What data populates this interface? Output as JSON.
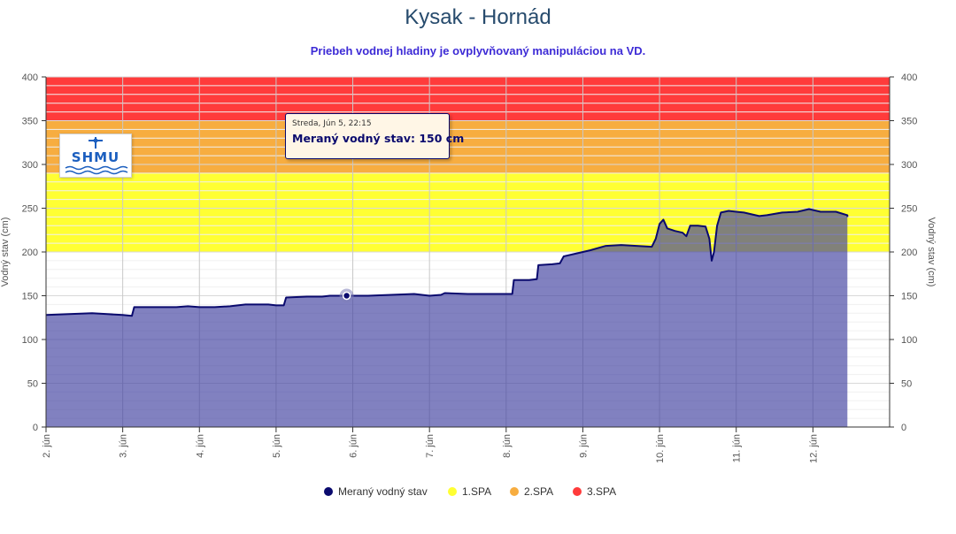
{
  "chart_data": {
    "type": "area",
    "title": "Kysak - Hornád",
    "subtitle": "Priebeh vodnej hladiny je ovplyvňovaný manipuláciou na VD.",
    "ylabel_left": "Vodný stav (cm)",
    "ylabel_right": "Vodný stav (cm)",
    "ylim": [
      0,
      400
    ],
    "y_ticks": [
      "0",
      "50",
      "100",
      "150",
      "200",
      "250",
      "300",
      "350",
      "400"
    ],
    "xlim": [
      2.0,
      13.0
    ],
    "x_ticks": [
      {
        "value": 2,
        "label": "2. jún"
      },
      {
        "value": 3,
        "label": "3. jún"
      },
      {
        "value": 4,
        "label": "4. jún"
      },
      {
        "value": 5,
        "label": "5. jún"
      },
      {
        "value": 6,
        "label": "6. jún"
      },
      {
        "value": 7,
        "label": "7. jún"
      },
      {
        "value": 8,
        "label": "8. jún"
      },
      {
        "value": 9,
        "label": "9. jún"
      },
      {
        "value": 10,
        "label": "10. jún"
      },
      {
        "value": 11,
        "label": "11. jún"
      },
      {
        "value": 12,
        "label": "12. jún"
      }
    ],
    "bands": [
      {
        "name": "1.SPA",
        "from": 200,
        "to": 290,
        "color": "#ffff33"
      },
      {
        "name": "2.SPA",
        "from": 290,
        "to": 350,
        "color": "#f7ad40"
      },
      {
        "name": "3.SPA",
        "from": 350,
        "to": 400,
        "color": "#ff3b3b"
      }
    ],
    "series": [
      {
        "name": "Meraný vodný stav",
        "color": "#0a0a6e",
        "fill": "#4040a0",
        "points": [
          [
            2.0,
            128
          ],
          [
            2.3,
            129
          ],
          [
            2.6,
            130
          ],
          [
            2.8,
            129
          ],
          [
            3.0,
            128
          ],
          [
            3.12,
            127
          ],
          [
            3.15,
            137
          ],
          [
            3.4,
            137
          ],
          [
            3.7,
            137
          ],
          [
            3.85,
            138
          ],
          [
            4.0,
            137
          ],
          [
            4.2,
            137
          ],
          [
            4.4,
            138
          ],
          [
            4.6,
            140
          ],
          [
            4.9,
            140
          ],
          [
            5.0,
            139
          ],
          [
            5.1,
            139
          ],
          [
            5.13,
            148
          ],
          [
            5.4,
            149
          ],
          [
            5.6,
            149
          ],
          [
            5.7,
            150
          ],
          [
            5.92,
            150
          ],
          [
            6.2,
            150
          ],
          [
            6.5,
            151
          ],
          [
            6.8,
            152
          ],
          [
            7.0,
            150
          ],
          [
            7.15,
            151
          ],
          [
            7.2,
            153
          ],
          [
            7.5,
            152
          ],
          [
            7.8,
            152
          ],
          [
            8.0,
            152
          ],
          [
            8.08,
            152
          ],
          [
            8.1,
            168
          ],
          [
            8.3,
            168
          ],
          [
            8.4,
            169
          ],
          [
            8.42,
            185
          ],
          [
            8.6,
            186
          ],
          [
            8.7,
            187
          ],
          [
            8.75,
            195
          ],
          [
            8.85,
            197
          ],
          [
            9.0,
            200
          ],
          [
            9.1,
            202
          ],
          [
            9.3,
            207
          ],
          [
            9.5,
            208
          ],
          [
            9.7,
            207
          ],
          [
            9.9,
            206
          ],
          [
            9.95,
            215
          ],
          [
            10.0,
            232
          ],
          [
            10.05,
            237
          ],
          [
            10.1,
            227
          ],
          [
            10.2,
            224
          ],
          [
            10.3,
            222
          ],
          [
            10.35,
            218
          ],
          [
            10.4,
            230
          ],
          [
            10.5,
            230
          ],
          [
            10.6,
            229
          ],
          [
            10.65,
            215
          ],
          [
            10.68,
            190
          ],
          [
            10.71,
            200
          ],
          [
            10.75,
            230
          ],
          [
            10.8,
            245
          ],
          [
            10.9,
            247
          ],
          [
            11.0,
            246
          ],
          [
            11.1,
            245
          ],
          [
            11.3,
            241
          ],
          [
            11.4,
            242
          ],
          [
            11.6,
            245
          ],
          [
            11.8,
            246
          ],
          [
            11.95,
            249
          ],
          [
            12.1,
            246
          ],
          [
            12.3,
            246
          ],
          [
            12.45,
            242
          ],
          [
            12.45,
            240
          ]
        ]
      }
    ],
    "legend": [
      "Meraný vodný stav",
      "1.SPA",
      "2.SPA",
      "3.SPA"
    ],
    "legend_position": "bottom-center",
    "grid": true
  },
  "tooltip": {
    "date": "Streda, Jún 5, 22:15",
    "label": "Meraný vodný stav",
    "value": "150 cm",
    "point": {
      "x": 5.92,
      "y": 150
    }
  },
  "logo": {
    "text": "SHMU"
  }
}
